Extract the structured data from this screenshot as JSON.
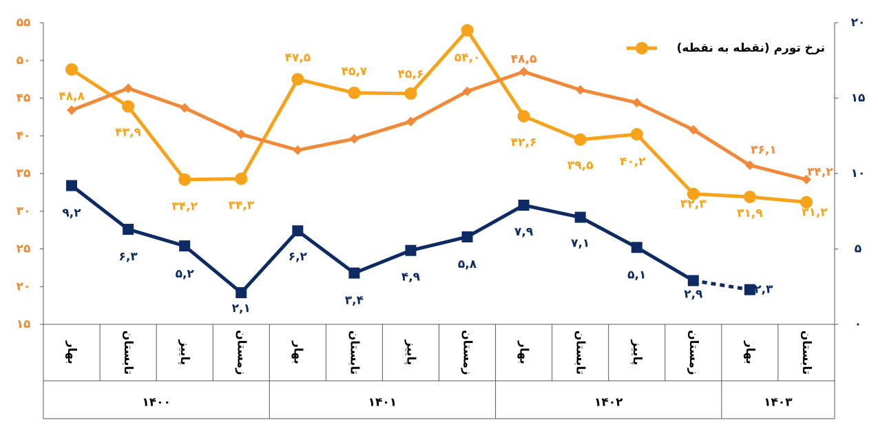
{
  "chart_data": {
    "type": "line",
    "categories": [
      "بهار",
      "تابستان",
      "پاییز",
      "زمستان",
      "بهار",
      "تابستان",
      "پاییز",
      "زمستان",
      "بهار",
      "تابستان",
      "پاییز",
      "زمستان",
      "بهار",
      "تابستان"
    ],
    "groups": [
      {
        "label": "۱۴۰۰",
        "span": 4
      },
      {
        "label": "۱۴۰۱",
        "span": 4
      },
      {
        "label": "۱۴۰۲",
        "span": 4
      },
      {
        "label": "۱۴۰۳",
        "span": 2
      }
    ],
    "series": [
      {
        "name": "نرخ تورم (نقطه به نقطه)",
        "color": "#f7a21b",
        "marker": "circle",
        "values": [
          48.8,
          43.9,
          34.2,
          34.3,
          47.5,
          45.7,
          45.6,
          54.0,
          42.6,
          39.5,
          40.2,
          32.3,
          31.9,
          31.2
        ],
        "value_labels": [
          "۴۸,۸",
          "۴۳,۹",
          "۳۴,۲",
          "۳۴,۳",
          "۴۷,۵",
          "۴۵,۷",
          "۴۵,۶",
          "۵۴,۰",
          "۴۲,۶",
          "۳۹,۵",
          "۴۰,۲",
          "۳۲,۳",
          "۳۱,۹",
          "۳۱,۲"
        ]
      },
      {
        "color": "#f08a3a",
        "marker": "diamond",
        "values": [
          43.4,
          46.3,
          43.7,
          40.2,
          38.1,
          39.6,
          41.9,
          45.9,
          48.5,
          46.1,
          44.4,
          40.8,
          36.1,
          34.2
        ],
        "value_labels": [
          null,
          null,
          null,
          null,
          null,
          null,
          null,
          null,
          "۴۸,۵",
          null,
          null,
          null,
          "۳۶,۱",
          "۳۴,۲"
        ]
      },
      {
        "color": "#0d2a62",
        "marker": "square",
        "axis": "y2",
        "dashed_from": 11,
        "values": [
          9.2,
          6.3,
          5.2,
          2.1,
          6.2,
          3.4,
          4.9,
          5.8,
          7.9,
          7.1,
          5.1,
          2.9,
          2.3,
          null
        ],
        "value_labels": [
          "۹,۲",
          "۶,۳",
          "۵,۲",
          "۲,۱",
          "۶,۲",
          "۳,۴",
          "۴,۹",
          "۵,۸",
          "۷,۹",
          "۷,۱",
          "۵,۱",
          "۲,۹",
          "۲,۳",
          null
        ]
      }
    ],
    "ylim": [
      15,
      55
    ],
    "yticks": [
      {
        "value": 15,
        "label": "۱۵"
      },
      {
        "value": 20,
        "label": "۲۰"
      },
      {
        "value": 25,
        "label": "۲۵"
      },
      {
        "value": 30,
        "label": "۳۰"
      },
      {
        "value": 35,
        "label": "۳۵"
      },
      {
        "value": 40,
        "label": "۴۰"
      },
      {
        "value": 45,
        "label": "۴۵"
      },
      {
        "value": 50,
        "label": "۵۰"
      },
      {
        "value": 55,
        "label": "۵۵"
      }
    ],
    "y2lim": [
      0,
      20
    ],
    "y2ticks": [
      {
        "value": 0,
        "label": "۰"
      },
      {
        "value": 5,
        "label": "۵"
      },
      {
        "value": 10,
        "label": "۱۰"
      },
      {
        "value": 15,
        "label": "۱۵"
      },
      {
        "value": 20,
        "label": "۲۰"
      }
    ],
    "ytick_color": "#f08a30",
    "y2tick_color": "#0d2a62",
    "legend": "upper right",
    "grid": false
  }
}
